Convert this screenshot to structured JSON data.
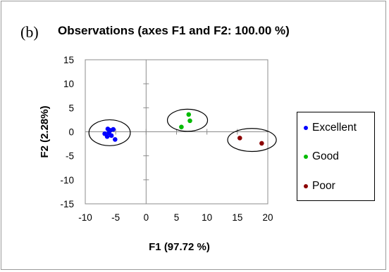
{
  "panel_label": "(b)",
  "chart_data": {
    "type": "scatter",
    "title": "Observations (axes F1 and F2: 100.00 %)",
    "xlabel": "F1 (97.72 %)",
    "ylabel": "F2 (2.28%)",
    "xlim": [
      -10,
      20
    ],
    "ylim": [
      -15,
      15
    ],
    "xticks": [
      -10,
      -5,
      0,
      5,
      10,
      15,
      20
    ],
    "yticks": [
      -15,
      -10,
      -5,
      0,
      5,
      10,
      15
    ],
    "grid": false,
    "legend_position": "right",
    "series": [
      {
        "name": "Excellent",
        "color": "#0000ff",
        "points": [
          [
            -6.8,
            -0.4
          ],
          [
            -6.3,
            0.6
          ],
          [
            -6.1,
            -0.2
          ],
          [
            -5.9,
            0.3
          ],
          [
            -5.7,
            -0.8
          ],
          [
            -6.4,
            -1.0
          ],
          [
            -5.4,
            0.5
          ],
          [
            -5.1,
            -1.6
          ]
        ]
      },
      {
        "name": "Good",
        "color": "#00bb00",
        "points": [
          [
            5.8,
            1.0
          ],
          [
            7.0,
            3.6
          ],
          [
            7.2,
            2.3
          ]
        ]
      },
      {
        "name": "Poor",
        "color": "#8b0000",
        "points": [
          [
            15.4,
            -1.3
          ],
          [
            19.0,
            -2.4
          ]
        ]
      }
    ],
    "ellipses": [
      {
        "cx": -6.0,
        "cy": -0.2,
        "rx": 3.4,
        "ry": 2.7
      },
      {
        "cx": 6.8,
        "cy": 2.4,
        "rx": 3.3,
        "ry": 2.3
      },
      {
        "cx": 17.4,
        "cy": -1.7,
        "rx": 4.0,
        "ry": 2.4
      }
    ]
  }
}
